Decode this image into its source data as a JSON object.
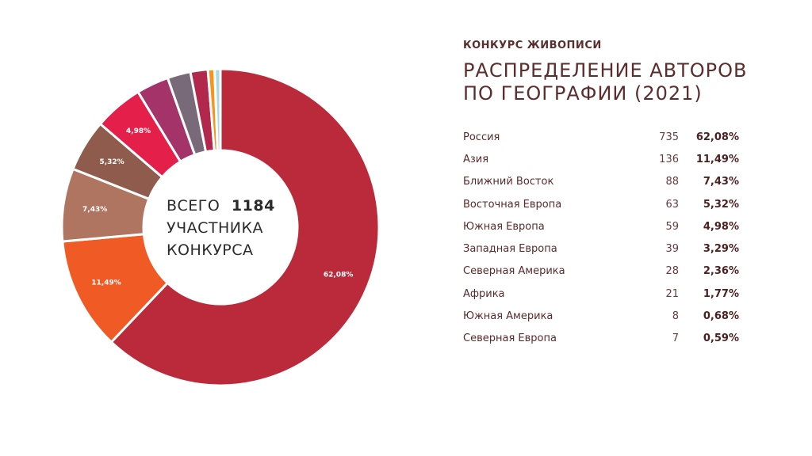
{
  "header": {
    "kicker": "КОНКУРС ЖИВОПИСИ",
    "title_line1": "РАСПРЕДЕЛЕНИЕ АВТОРОВ",
    "title_line2": "ПО ГЕОГРАФИИ (2021)"
  },
  "center": {
    "prefix": "ВСЕГО",
    "total": "1184",
    "line2": "УЧАСТНИКА",
    "line3": "КОНКУРСА"
  },
  "chart_data": {
    "type": "pie",
    "donut": true,
    "total": 1184,
    "categories": [
      "Россия",
      "Азия",
      "Ближний Восток",
      "Восточная Европа",
      "Южная Европа",
      "Западная Европа",
      "Северная Америка",
      "Африка",
      "Южная Америка",
      "Северная Европа"
    ],
    "values": [
      735,
      136,
      88,
      63,
      59,
      39,
      28,
      21,
      8,
      7
    ],
    "percents": [
      "62,08%",
      "11,49%",
      "7,43%",
      "5,32%",
      "4,98%",
      "3,29%",
      "2,36%",
      "1,77%",
      "0,68%",
      "0,59%"
    ],
    "slice_labels": [
      "62,08%",
      "11,49%",
      "7,43%",
      "5,32%",
      "4,98%",
      "",
      "",
      "",
      "",
      ""
    ],
    "colors": [
      "#bb2a3a",
      "#f05a24",
      "#b07560",
      "#8e5b4c",
      "#e41f4a",
      "#a4336a",
      "#786a78",
      "#b2284c",
      "#f7941d",
      "#a9d8e8"
    ]
  }
}
